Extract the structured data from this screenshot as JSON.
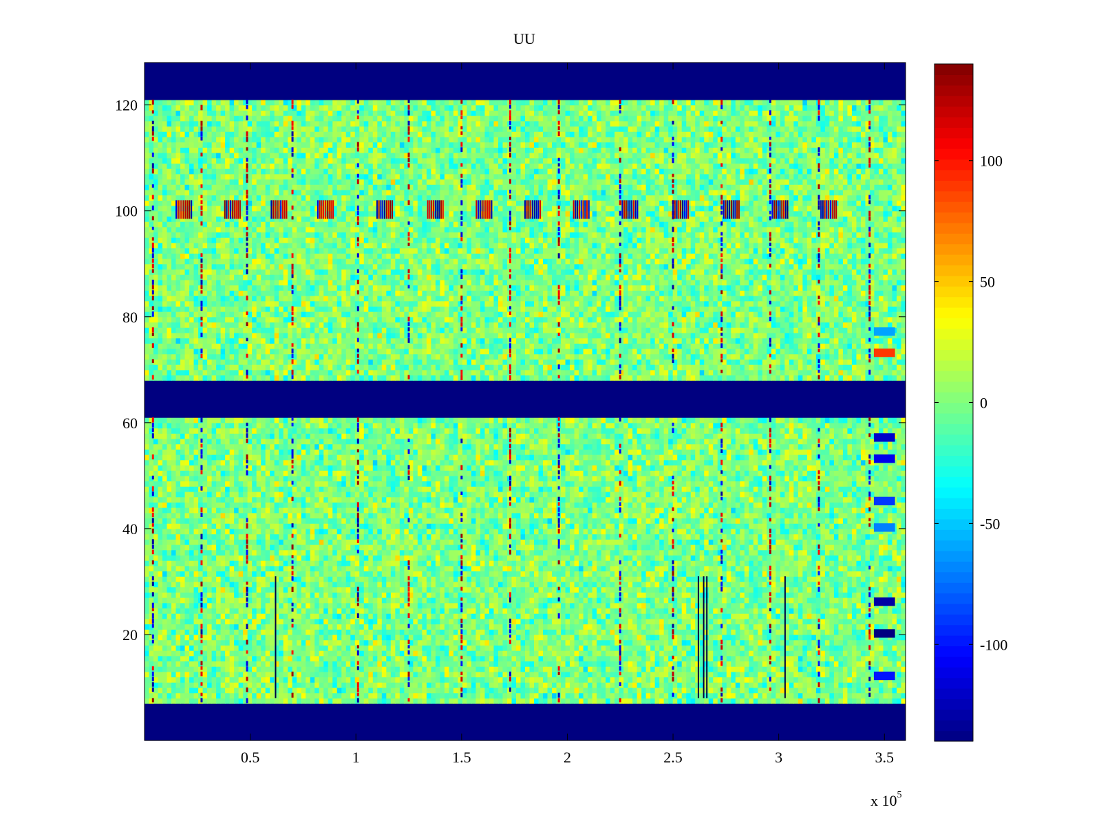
{
  "chart_data": {
    "type": "heatmap",
    "title": "UU",
    "xlabel": "",
    "ylabel": "",
    "xlim": [
      0,
      360000
    ],
    "ylim": [
      0,
      128
    ],
    "x_ticks": [
      50000,
      100000,
      150000,
      200000,
      250000,
      300000,
      350000
    ],
    "x_tick_labels": [
      "0.5",
      "1",
      "1.5",
      "2",
      "2.5",
      "3",
      "3.5"
    ],
    "x_exponent_label": "x 10",
    "x_exponent_power": "5",
    "y_ticks": [
      20,
      40,
      60,
      80,
      100,
      120
    ],
    "y_tick_labels": [
      "20",
      "40",
      "60",
      "80",
      "100",
      "120"
    ],
    "colormap": "jet",
    "clim": [
      -140,
      140
    ],
    "colorbar_ticks": [
      -100,
      -50,
      0,
      50,
      100
    ],
    "colorbar_tick_labels": [
      "-100",
      "-50",
      "0",
      "50",
      "100"
    ],
    "blank_rows": [
      [
        0,
        7
      ],
      [
        61,
        68
      ],
      [
        121,
        128
      ]
    ],
    "blank_value": -140,
    "background_level": 0,
    "vertical_event_lines_x": [
      4000,
      27000,
      48500,
      70000,
      101000,
      125000,
      150000,
      173000,
      196000,
      225000,
      250000,
      273000,
      296000,
      319000,
      343000
    ],
    "dark_stripe_x": [
      62000,
      262000,
      264500,
      266000,
      303000
    ],
    "dark_stripe_rows": [
      8,
      31
    ],
    "row_99_burst_x": [
      15000,
      38000,
      60000,
      82000,
      110000,
      134000,
      157000,
      180000,
      203000,
      226000,
      250000,
      274000,
      297000,
      320000
    ],
    "right_edge_band_x": [
      345000,
      355000
    ],
    "right_edge_band_values": [
      {
        "row": 73,
        "value": 90
      },
      {
        "row": 77,
        "value": -60
      },
      {
        "row": 57,
        "value": -120
      },
      {
        "row": 53,
        "value": -110
      },
      {
        "row": 45,
        "value": -90
      },
      {
        "row": 40,
        "value": -70
      },
      {
        "row": 26,
        "value": -130
      },
      {
        "row": 20,
        "value": -140
      },
      {
        "row": 12,
        "value": -100
      }
    ]
  }
}
